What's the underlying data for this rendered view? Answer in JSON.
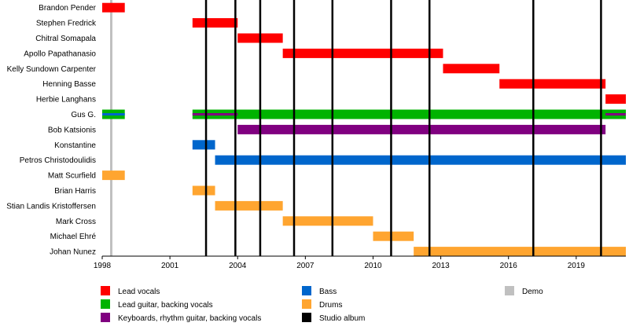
{
  "chart_data": {
    "type": "timeline",
    "x_axis": {
      "range": [
        1998,
        2021.2
      ],
      "ticks": [
        1998,
        2001,
        2004,
        2007,
        2010,
        2013,
        2016,
        2019
      ]
    },
    "members": [
      "Brandon Pender",
      "Stephen Fredrick",
      "Chitral Somapala",
      "Apollo Papathanasio",
      "Kelly Sundown Carpenter",
      "Henning Basse",
      "Herbie Langhans",
      "Gus G.",
      "Bob Katsionis",
      "Konstantine",
      "Petros Christodoulidis",
      "Matt Scurfield",
      "Brian Harris",
      "Stian Landis Kristoffersen",
      "Mark Cross",
      "Michael Ehré",
      "Johan Nunez"
    ],
    "roles": [
      {
        "key": "lead_vocals",
        "label": "Lead vocals",
        "color": "#ff0000"
      },
      {
        "key": "lead_guitar",
        "label": "Lead guitar, backing vocals",
        "color": "#00b300"
      },
      {
        "key": "keyboards",
        "label": "Keyboards, rhythm guitar, backing vocals",
        "color": "#800080"
      },
      {
        "key": "bass",
        "label": "Bass",
        "color": "#0066cc"
      },
      {
        "key": "drums",
        "label": "Drums",
        "color": "#ffa530"
      },
      {
        "key": "studio_album",
        "label": "Studio album",
        "color": "#000000"
      },
      {
        "key": "demo",
        "label": "Demo",
        "color": "#c0c0c0"
      }
    ],
    "bars": [
      {
        "member": 0,
        "role": "lead_vocals",
        "start": 1998,
        "end": 1999
      },
      {
        "member": 1,
        "role": "lead_vocals",
        "start": 2002,
        "end": 2004
      },
      {
        "member": 2,
        "role": "lead_vocals",
        "start": 2004,
        "end": 2006
      },
      {
        "member": 3,
        "role": "lead_vocals",
        "start": 2006,
        "end": 2013.1
      },
      {
        "member": 4,
        "role": "lead_vocals",
        "start": 2013.1,
        "end": 2015.6
      },
      {
        "member": 5,
        "role": "lead_vocals",
        "start": 2015.6,
        "end": 2020.3
      },
      {
        "member": 6,
        "role": "lead_vocals",
        "start": 2020.3,
        "end": 2021.2
      },
      {
        "member": 7,
        "role": "lead_guitar",
        "start": 1998,
        "end": 1999
      },
      {
        "member": 7,
        "role": "lead_guitar",
        "start": 2002,
        "end": 2021.2
      },
      {
        "member": 8,
        "role": "keyboards",
        "start": 2004,
        "end": 2020.3
      },
      {
        "member": 9,
        "role": "bass",
        "start": 2002,
        "end": 2003
      },
      {
        "member": 10,
        "role": "bass",
        "start": 2003,
        "end": 2021.2
      },
      {
        "member": 11,
        "role": "drums",
        "start": 1998,
        "end": 1999
      },
      {
        "member": 12,
        "role": "drums",
        "start": 2002,
        "end": 2003
      },
      {
        "member": 13,
        "role": "drums",
        "start": 2003,
        "end": 2006
      },
      {
        "member": 14,
        "role": "drums",
        "start": 2006,
        "end": 2010
      },
      {
        "member": 15,
        "role": "drums",
        "start": 2010,
        "end": 2011.8
      },
      {
        "member": 16,
        "role": "drums",
        "start": 2011.8,
        "end": 2021.2
      }
    ],
    "secondary_bars": [
      {
        "member": 7,
        "role": "bass",
        "start": 1998,
        "end": 1999
      },
      {
        "member": 7,
        "role": "keyboards",
        "start": 2002,
        "end": 2004
      },
      {
        "member": 7,
        "role": "keyboards",
        "start": 2020.3,
        "end": 2021.2
      }
    ],
    "studio_albums": [
      2002.6,
      2003.9,
      2005,
      2006.5,
      2008.2,
      2010.8,
      2012.5,
      2017.1,
      2020.1
    ],
    "demos": [
      1998.4
    ],
    "grid": false,
    "legend_position": "bottom"
  }
}
